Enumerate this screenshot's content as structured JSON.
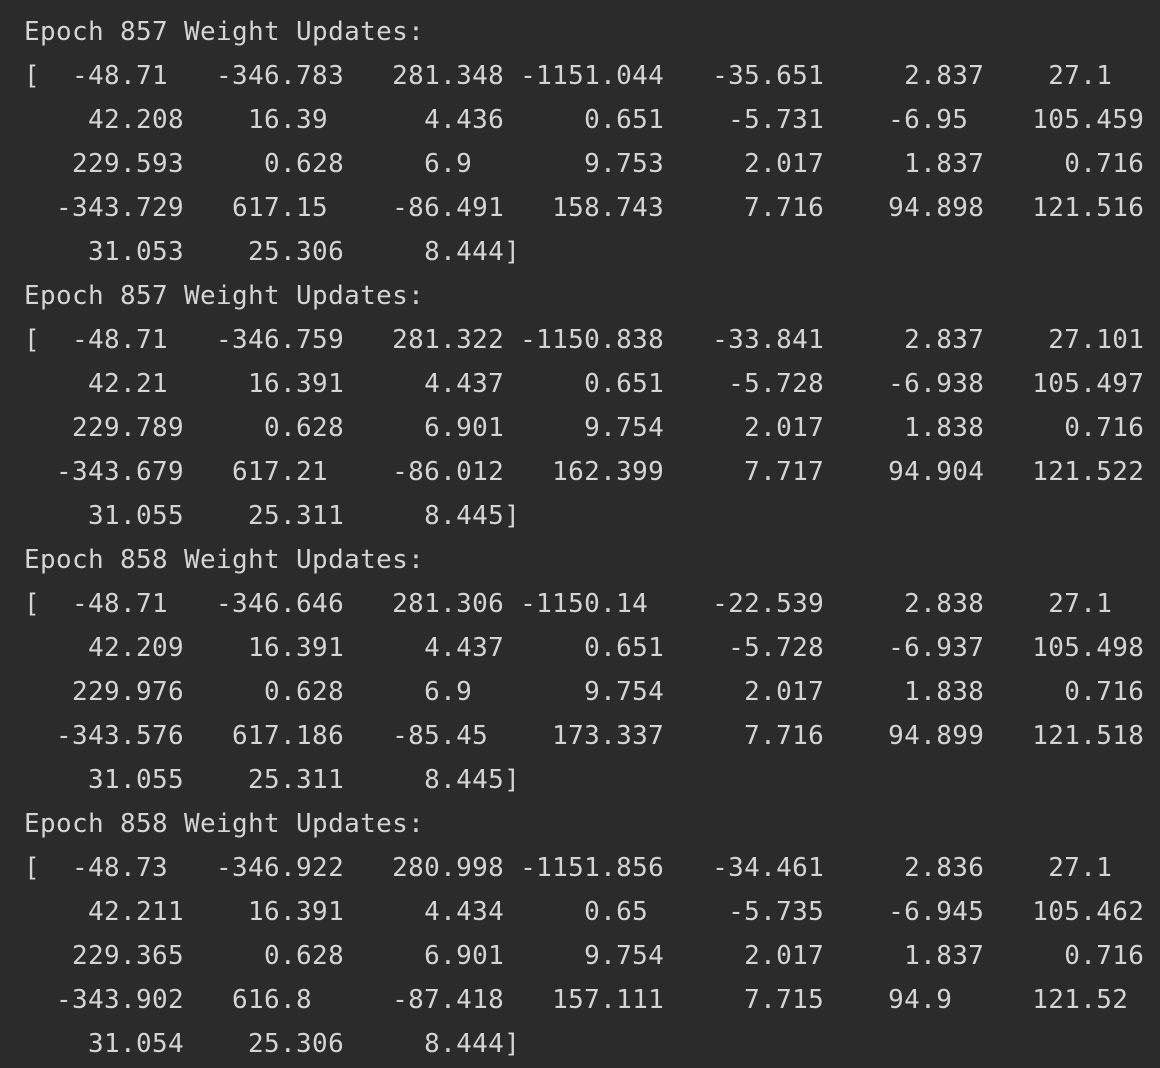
{
  "console": {
    "lines": [
      "Epoch 857 Weight Updates:",
      "[  -48.71   -346.783   281.348 -1151.044   -35.651     2.837    27.1",
      "    42.208    16.39      4.436     0.651    -5.731    -6.95    105.459",
      "   229.593     0.628     6.9       9.753     2.017     1.837     0.716",
      "  -343.729   617.15    -86.491   158.743     7.716    94.898   121.516",
      "    31.053    25.306     8.444]",
      "Epoch 857 Weight Updates:",
      "[  -48.71   -346.759   281.322 -1150.838   -33.841     2.837    27.101",
      "    42.21     16.391     4.437     0.651    -5.728    -6.938   105.497",
      "   229.789     0.628     6.901     9.754     2.017     1.838     0.716",
      "  -343.679   617.21    -86.012   162.399     7.717    94.904   121.522",
      "    31.055    25.311     8.445]",
      "Epoch 858 Weight Updates:",
      "[  -48.71   -346.646   281.306 -1150.14    -22.539     2.838    27.1",
      "    42.209    16.391     4.437     0.651    -5.728    -6.937   105.498",
      "   229.976     0.628     6.9       9.754     2.017     1.838     0.716",
      "  -343.576   617.186   -85.45    173.337     7.716    94.899   121.518",
      "    31.055    25.311     8.445]",
      "Epoch 858 Weight Updates:",
      "[  -48.73   -346.922   280.998 -1151.856   -34.461     2.836    27.1",
      "    42.211    16.391     4.434     0.65     -5.735    -6.945   105.462",
      "   229.365     0.628     6.901     9.754     2.017     1.837     0.716",
      "  -343.902   616.8     -87.418   157.111     7.715    94.9     121.52",
      "    31.054    25.306     8.444]"
    ]
  }
}
